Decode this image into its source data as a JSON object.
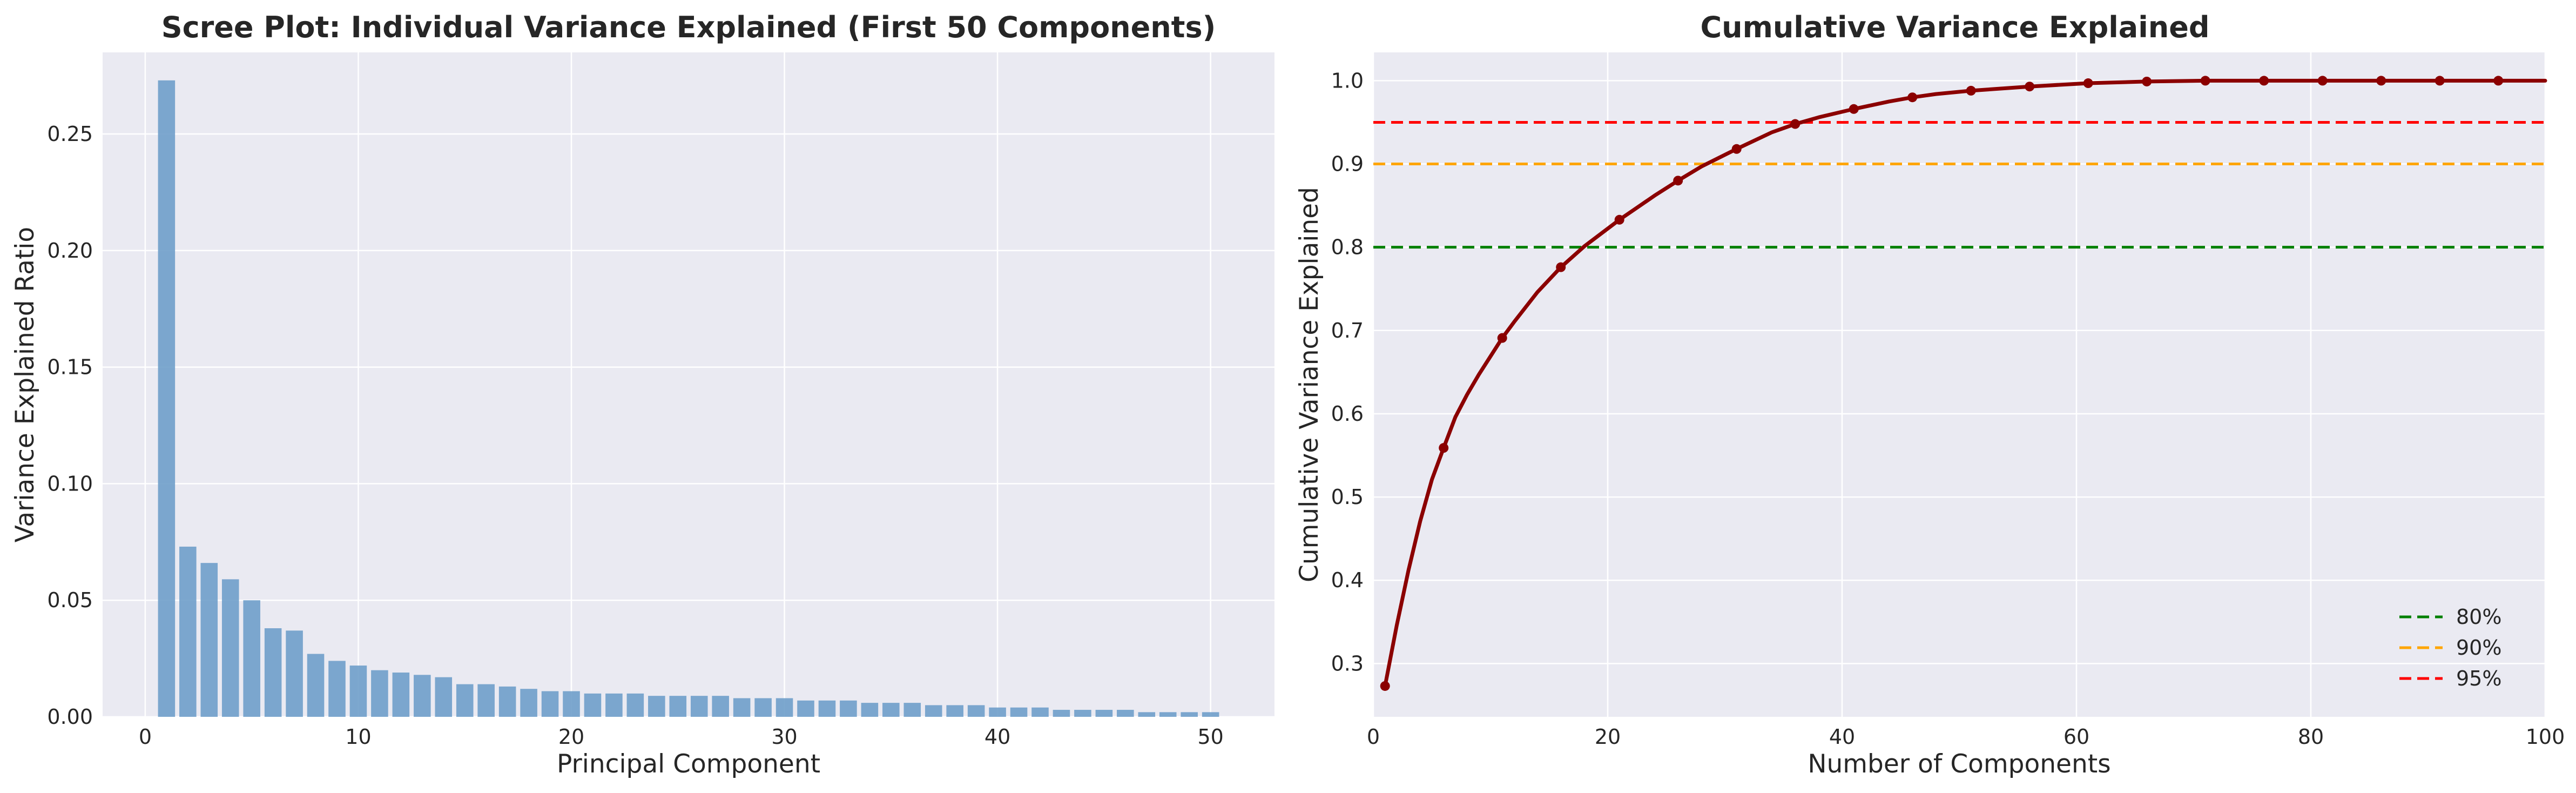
{
  "chart_data": [
    {
      "type": "bar",
      "title": "Scree Plot: Individual Variance Explained (First 50 Components)",
      "xlabel": "Principal Component",
      "ylabel": "Variance Explained Ratio",
      "xlim": [
        -2,
        53
      ],
      "ylim": [
        0,
        0.285
      ],
      "xticks": [
        0,
        10,
        20,
        30,
        40,
        50
      ],
      "xtick_labels": [
        "0",
        "10",
        "20",
        "30",
        "40",
        "50"
      ],
      "yticks": [
        0.0,
        0.05,
        0.1,
        0.15,
        0.2,
        0.25
      ],
      "ytick_labels": [
        "0.00",
        "0.05",
        "0.10",
        "0.15",
        "0.20",
        "0.25"
      ],
      "grid": true,
      "bar_color": "#6f9fca",
      "x": [
        1,
        2,
        3,
        4,
        5,
        6,
        7,
        8,
        9,
        10,
        11,
        12,
        13,
        14,
        15,
        16,
        17,
        18,
        19,
        20,
        21,
        22,
        23,
        24,
        25,
        26,
        27,
        28,
        29,
        30,
        31,
        32,
        33,
        34,
        35,
        36,
        37,
        38,
        39,
        40,
        41,
        42,
        43,
        44,
        45,
        46,
        47,
        48,
        49,
        50
      ],
      "values": [
        0.273,
        0.073,
        0.066,
        0.059,
        0.05,
        0.038,
        0.037,
        0.027,
        0.024,
        0.022,
        0.02,
        0.019,
        0.018,
        0.017,
        0.014,
        0.014,
        0.013,
        0.012,
        0.011,
        0.011,
        0.01,
        0.01,
        0.01,
        0.009,
        0.009,
        0.009,
        0.009,
        0.008,
        0.008,
        0.008,
        0.007,
        0.007,
        0.007,
        0.006,
        0.006,
        0.006,
        0.005,
        0.005,
        0.005,
        0.004,
        0.004,
        0.004,
        0.003,
        0.003,
        0.003,
        0.003,
        0.002,
        0.002,
        0.002,
        0.002
      ]
    },
    {
      "type": "line",
      "title": "Cumulative Variance Explained",
      "xlabel": "Number of Components",
      "ylabel": "Cumulative Variance Explained",
      "xlim": [
        0,
        100
      ],
      "ylim": [
        0.236,
        1.034
      ],
      "xticks": [
        0,
        20,
        40,
        60,
        80,
        100
      ],
      "xtick_labels": [
        "0",
        "20",
        "40",
        "60",
        "80",
        "100"
      ],
      "yticks": [
        0.3,
        0.4,
        0.5,
        0.6,
        0.7,
        0.8,
        0.9,
        1.0
      ],
      "ytick_labels": [
        "0.3",
        "0.4",
        "0.5",
        "0.6",
        "0.7",
        "0.8",
        "0.9",
        "1.0"
      ],
      "grid": true,
      "line_color": "#8b0000",
      "x": [
        1,
        2,
        3,
        4,
        5,
        6,
        7,
        8,
        9,
        10,
        11,
        12,
        14,
        16,
        18,
        21,
        24,
        26,
        28,
        31,
        34,
        36,
        38,
        41,
        44,
        46,
        48,
        51,
        56,
        61,
        66,
        71,
        76,
        81,
        86,
        91,
        96,
        100
      ],
      "y": [
        0.273,
        0.346,
        0.412,
        0.471,
        0.521,
        0.559,
        0.596,
        0.623,
        0.647,
        0.669,
        0.691,
        0.71,
        0.746,
        0.776,
        0.801,
        0.833,
        0.862,
        0.88,
        0.897,
        0.918,
        0.938,
        0.948,
        0.956,
        0.966,
        0.975,
        0.98,
        0.984,
        0.988,
        0.993,
        0.997,
        0.999,
        1.0,
        1.0,
        1.0,
        1.0,
        1.0,
        1.0,
        1.0
      ],
      "marker_x": [
        1,
        6,
        11,
        16,
        21,
        26,
        31,
        36,
        41,
        46,
        51,
        56,
        61,
        66,
        71,
        76,
        81,
        86,
        91,
        96
      ],
      "marker_y": [
        0.273,
        0.559,
        0.691,
        0.776,
        0.833,
        0.88,
        0.918,
        0.948,
        0.966,
        0.98,
        0.988,
        0.993,
        0.997,
        0.999,
        1.0,
        1.0,
        1.0,
        1.0,
        1.0,
        1.0
      ],
      "thresholds": [
        {
          "name": "80%",
          "value": 0.8,
          "color": "#008000"
        },
        {
          "name": "90%",
          "value": 0.9,
          "color": "#ffa500"
        },
        {
          "name": "95%",
          "value": 0.95,
          "color": "#ff0000"
        }
      ],
      "legend_position": "lower-right"
    }
  ]
}
